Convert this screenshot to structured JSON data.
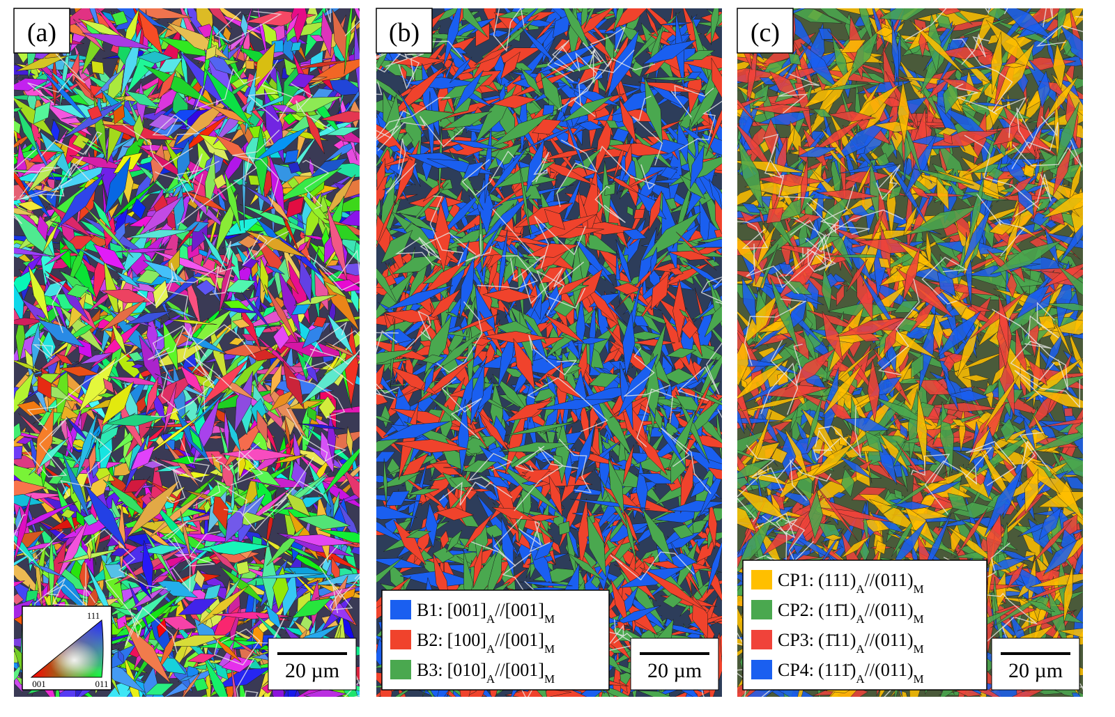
{
  "panels": [
    {
      "label": "(a)",
      "scale_bar": "20 µm",
      "ipf_key": {
        "top": "111",
        "left": "001",
        "right": "011"
      }
    },
    {
      "label": "(b)",
      "scale_bar": "20 µm",
      "legend": [
        {
          "color": "#1a5ff0",
          "key": "B1:",
          "a": "[001]",
          "a_sub": "A",
          "sep": "//",
          "m": "[001]",
          "m_sub": "M"
        },
        {
          "color": "#f0432c",
          "key": "B2:",
          "a": "[100]",
          "a_sub": "A",
          "sep": "//",
          "m": "[001]",
          "m_sub": "M"
        },
        {
          "color": "#4aa84f",
          "key": "B3:",
          "a": "[010]",
          "a_sub": "A",
          "sep": "//",
          "m": "[001]",
          "m_sub": "M"
        }
      ]
    },
    {
      "label": "(c)",
      "scale_bar": "20 µm",
      "legend": [
        {
          "color": "#ffbf00",
          "key": "CP1:",
          "a": "(111)",
          "a_sub": "A",
          "sep": "//",
          "m": "(011)",
          "m_sub": "M"
        },
        {
          "color": "#4aa84f",
          "key": "CP2:",
          "a": "(11̄1)",
          "a_sub": "A",
          "sep": "//",
          "m": "(011)",
          "m_sub": "M"
        },
        {
          "color": "#f0433a",
          "key": "CP3:",
          "a": "(1̄11)",
          "a_sub": "A",
          "sep": "//",
          "m": "(011)",
          "m_sub": "M"
        },
        {
          "color": "#1a5ff0",
          "key": "CP4:",
          "a": "(111̄)",
          "a_sub": "A",
          "sep": "//",
          "m": "(011)",
          "m_sub": "M"
        }
      ]
    }
  ]
}
